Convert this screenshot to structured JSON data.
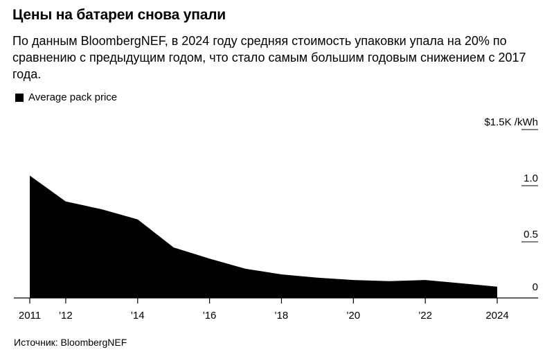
{
  "header": {
    "title": "Цены на батареи снова упали",
    "subtitle": "По данным BloombergNEF, в 2024 году средняя стоимость упаковки упала на 20% по сравнению с предыдущим годом, что стало самым большим годовым снижением с 2017 года."
  },
  "source": "Источник: BloombergNEF",
  "chart_data": {
    "type": "area",
    "x": [
      2011,
      2012,
      2013,
      2014,
      2015,
      2016,
      2017,
      2018,
      2019,
      2020,
      2021,
      2022,
      2023,
      2024
    ],
    "series": [
      {
        "name": "Average pack price",
        "color": "#000000",
        "values": [
          1.09,
          0.86,
          0.79,
          0.7,
          0.45,
          0.35,
          0.26,
          0.21,
          0.18,
          0.16,
          0.15,
          0.16,
          0.13,
          0.1
        ]
      }
    ],
    "x_ticks": [
      {
        "value": 2011,
        "label": "2011"
      },
      {
        "value": 2012,
        "label": "'12"
      },
      {
        "value": 2014,
        "label": "'14"
      },
      {
        "value": 2016,
        "label": "'16"
      },
      {
        "value": 2018,
        "label": "'18"
      },
      {
        "value": 2020,
        "label": "'20"
      },
      {
        "value": 2022,
        "label": "'22"
      },
      {
        "value": 2024,
        "label": "2024"
      }
    ],
    "y_ticks": [
      {
        "value": 0,
        "label": "0"
      },
      {
        "value": 0.5,
        "label": "0.5"
      },
      {
        "value": 1.0,
        "label": "1.0"
      },
      {
        "value": 1.5,
        "label": "$1.5K /kWh"
      }
    ],
    "ylim": [
      0,
      1.5
    ],
    "xlim": [
      2011,
      2024
    ],
    "y_axis_side": "right",
    "grid": false,
    "legend_position": "top-left"
  }
}
